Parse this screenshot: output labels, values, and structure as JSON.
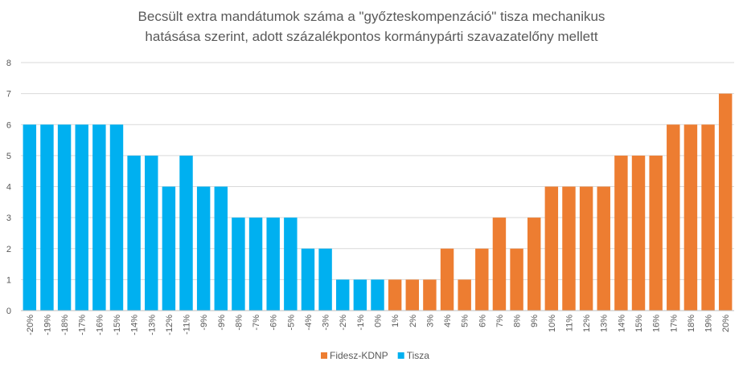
{
  "chart_data": {
    "type": "bar",
    "title_lines": [
      "Becsült extra mandátumok száma a \"győzteskompenzáció\" tisza mechanikus",
      "hatásása szerint, adott százalékpontos kormánypárti szavazatelőny mellett"
    ],
    "categories": [
      "-20%",
      "-19%",
      "-18%",
      "-17%",
      "-16%",
      "-15%",
      "-14%",
      "-13%",
      "-12%",
      "-11%",
      "-9%",
      "-9%",
      "-8%",
      "-7%",
      "-6%",
      "-5%",
      "-4%",
      "-3%",
      "-2%",
      "-1%",
      "0%",
      "1%",
      "2%",
      "3%",
      "4%",
      "5%",
      "6%",
      "7%",
      "8%",
      "9%",
      "10%",
      "11%",
      "12%",
      "13%",
      "14%",
      "15%",
      "16%",
      "17%",
      "18%",
      "19%",
      "20%"
    ],
    "values": [
      6,
      6,
      6,
      6,
      6,
      6,
      5,
      5,
      4,
      5,
      4,
      4,
      3,
      3,
      3,
      3,
      2,
      2,
      1,
      1,
      1,
      1,
      1,
      1,
      2,
      1,
      2,
      3,
      2,
      3,
      4,
      4,
      4,
      4,
      5,
      5,
      5,
      6,
      6,
      6,
      7
    ],
    "bar_series": [
      "tisza",
      "tisza",
      "tisza",
      "tisza",
      "tisza",
      "tisza",
      "tisza",
      "tisza",
      "tisza",
      "tisza",
      "tisza",
      "tisza",
      "tisza",
      "tisza",
      "tisza",
      "tisza",
      "tisza",
      "tisza",
      "tisza",
      "tisza",
      "tisza",
      "fidesz",
      "fidesz",
      "fidesz",
      "fidesz",
      "fidesz",
      "fidesz",
      "fidesz",
      "fidesz",
      "fidesz",
      "fidesz",
      "fidesz",
      "fidesz",
      "fidesz",
      "fidesz",
      "fidesz",
      "fidesz",
      "fidesz",
      "fidesz",
      "fidesz",
      "fidesz"
    ],
    "series": [
      {
        "key": "fidesz",
        "name": "Fidesz-KDNP",
        "color": "#ED7D31"
      },
      {
        "key": "tisza",
        "name": "Tisza",
        "color": "#00B0F0"
      }
    ],
    "ylim": [
      0,
      8
    ],
    "yticks": [
      0,
      1,
      2,
      3,
      4,
      5,
      6,
      7,
      8
    ],
    "grid": true,
    "grid_color": "#D9D9D9",
    "legend_position": "bottom"
  }
}
